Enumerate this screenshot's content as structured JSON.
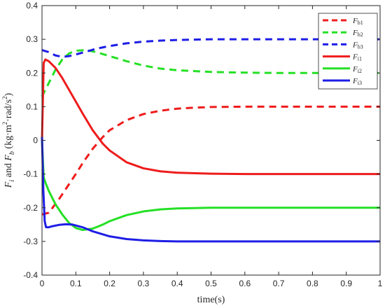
{
  "chart_data": {
    "type": "line",
    "xlabel": "time(s)",
    "ylabel_parts": {
      "f1": "F",
      "s1": "i",
      "and": " and ",
      "f2": "F",
      "s2": "b",
      "units": " (kg·m",
      "exp1": "2",
      "mid": "·rad/s",
      "exp2": "2",
      "close": ")"
    },
    "xlim": [
      0,
      1
    ],
    "ylim": [
      -0.4,
      0.4
    ],
    "xticks": [
      0,
      0.1,
      0.2,
      0.3,
      0.4,
      0.5,
      0.6,
      0.7,
      0.8,
      0.9,
      1
    ],
    "xtick_labels": [
      "0",
      "0.1",
      "0.2",
      "0.3",
      "0.4",
      "0.5",
      "0.6",
      "0.7",
      "0.8",
      "0.9",
      "1"
    ],
    "yticks": [
      -0.4,
      -0.3,
      -0.2,
      -0.1,
      0,
      0.1,
      0.2,
      0.3,
      0.4
    ],
    "ytick_labels": [
      "-0.4",
      "-0.3",
      "-0.2",
      "-0.1",
      "0",
      "0.1",
      "0.2",
      "0.3",
      "0.4"
    ],
    "grid": false,
    "legend_position": "top-right",
    "series": [
      {
        "name": "Fb1",
        "label_main": "F",
        "label_sub": "b1",
        "color": "#ee1c1c",
        "style": "dashed",
        "x": [
          0,
          0.02,
          0.05,
          0.08,
          0.1,
          0.12,
          0.15,
          0.18,
          0.2,
          0.25,
          0.3,
          0.35,
          0.4,
          0.45,
          0.5,
          0.6,
          0.7,
          0.8,
          0.9,
          1.0
        ],
        "y": [
          -0.22,
          -0.215,
          -0.175,
          -0.13,
          -0.1,
          -0.068,
          -0.025,
          0.01,
          0.03,
          0.06,
          0.078,
          0.088,
          0.094,
          0.097,
          0.099,
          0.1,
          0.1,
          0.1,
          0.1,
          0.1
        ]
      },
      {
        "name": "Fb2",
        "label_main": "F",
        "label_sub": "b2",
        "color": "#25e025",
        "style": "dashed",
        "x": [
          0,
          0.02,
          0.04,
          0.06,
          0.08,
          0.1,
          0.13,
          0.16,
          0.2,
          0.25,
          0.3,
          0.35,
          0.4,
          0.5,
          0.6,
          0.7,
          0.8,
          0.9,
          1.0
        ],
        "y": [
          0.13,
          0.17,
          0.21,
          0.24,
          0.258,
          0.266,
          0.268,
          0.262,
          0.25,
          0.235,
          0.222,
          0.213,
          0.208,
          0.203,
          0.201,
          0.2,
          0.2,
          0.2,
          0.2
        ]
      },
      {
        "name": "Fb3",
        "label_main": "F",
        "label_sub": "b3",
        "color": "#1e1ee6",
        "style": "dashed",
        "x": [
          0,
          0.02,
          0.04,
          0.06,
          0.08,
          0.1,
          0.13,
          0.16,
          0.2,
          0.25,
          0.3,
          0.35,
          0.4,
          0.5,
          0.6,
          0.7,
          0.8,
          0.9,
          1.0
        ],
        "y": [
          0.268,
          0.262,
          0.252,
          0.248,
          0.25,
          0.255,
          0.263,
          0.272,
          0.28,
          0.288,
          0.293,
          0.296,
          0.298,
          0.3,
          0.3,
          0.3,
          0.3,
          0.3,
          0.3
        ]
      },
      {
        "name": "Fi1",
        "label_main": "F",
        "label_sub": "i1",
        "color": "#ee1c1c",
        "style": "solid",
        "x": [
          0,
          0.005,
          0.01,
          0.02,
          0.04,
          0.06,
          0.08,
          0.1,
          0.12,
          0.15,
          0.18,
          0.2,
          0.25,
          0.3,
          0.35,
          0.4,
          0.5,
          0.6,
          0.7,
          0.8,
          0.9,
          1.0
        ],
        "y": [
          0.0,
          0.23,
          0.24,
          0.235,
          0.215,
          0.185,
          0.15,
          0.115,
          0.08,
          0.03,
          -0.01,
          -0.03,
          -0.065,
          -0.083,
          -0.092,
          -0.096,
          -0.099,
          -0.1,
          -0.1,
          -0.1,
          -0.1,
          -0.1
        ]
      },
      {
        "name": "Fi2",
        "label_main": "F",
        "label_sub": "i2",
        "color": "#25e025",
        "style": "solid",
        "x": [
          0,
          0.005,
          0.01,
          0.02,
          0.04,
          0.06,
          0.08,
          0.1,
          0.12,
          0.15,
          0.18,
          0.2,
          0.25,
          0.3,
          0.35,
          0.4,
          0.5,
          0.6,
          0.7,
          0.8,
          0.9,
          1.0
        ],
        "y": [
          0.0,
          -0.11,
          -0.125,
          -0.15,
          -0.19,
          -0.22,
          -0.245,
          -0.26,
          -0.266,
          -0.262,
          -0.25,
          -0.24,
          -0.222,
          -0.211,
          -0.205,
          -0.202,
          -0.2,
          -0.2,
          -0.2,
          -0.2,
          -0.2,
          -0.2
        ]
      },
      {
        "name": "Fi3",
        "label_main": "F",
        "label_sub": "i3",
        "color": "#1e1ee6",
        "style": "solid",
        "x": [
          0,
          0.004,
          0.008,
          0.012,
          0.02,
          0.03,
          0.05,
          0.07,
          0.09,
          0.12,
          0.15,
          0.2,
          0.25,
          0.3,
          0.35,
          0.4,
          0.5,
          0.6,
          0.7,
          0.8,
          0.9,
          1.0
        ],
        "y": [
          0.01,
          -0.15,
          -0.24,
          -0.258,
          -0.258,
          -0.255,
          -0.251,
          -0.249,
          -0.25,
          -0.258,
          -0.27,
          -0.285,
          -0.293,
          -0.297,
          -0.299,
          -0.3,
          -0.3,
          -0.3,
          -0.3,
          -0.3,
          -0.3,
          -0.3
        ]
      }
    ]
  }
}
